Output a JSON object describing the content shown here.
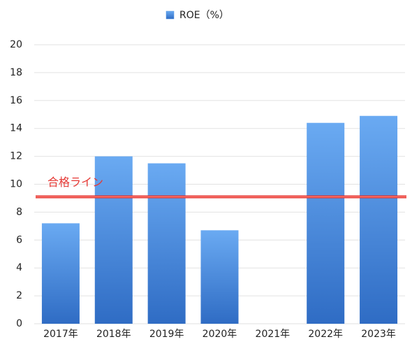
{
  "chart_data": {
    "type": "bar",
    "categories": [
      "2017年",
      "2018年",
      "2019年",
      "2020年",
      "2021年",
      "2022年",
      "2023年"
    ],
    "series": [
      {
        "name": "ROE（%）",
        "color": "#4a8fe0",
        "values": [
          7.2,
          12.0,
          11.5,
          6.7,
          null,
          14.4,
          14.9
        ]
      }
    ],
    "ylim": [
      0,
      20
    ],
    "yticks": [
      0,
      2,
      4,
      6,
      8,
      10,
      12,
      14,
      16,
      18,
      20
    ],
    "grid": true,
    "reference_line": {
      "value": 9.1,
      "label": "合格ライン",
      "color": "#e53935"
    }
  }
}
